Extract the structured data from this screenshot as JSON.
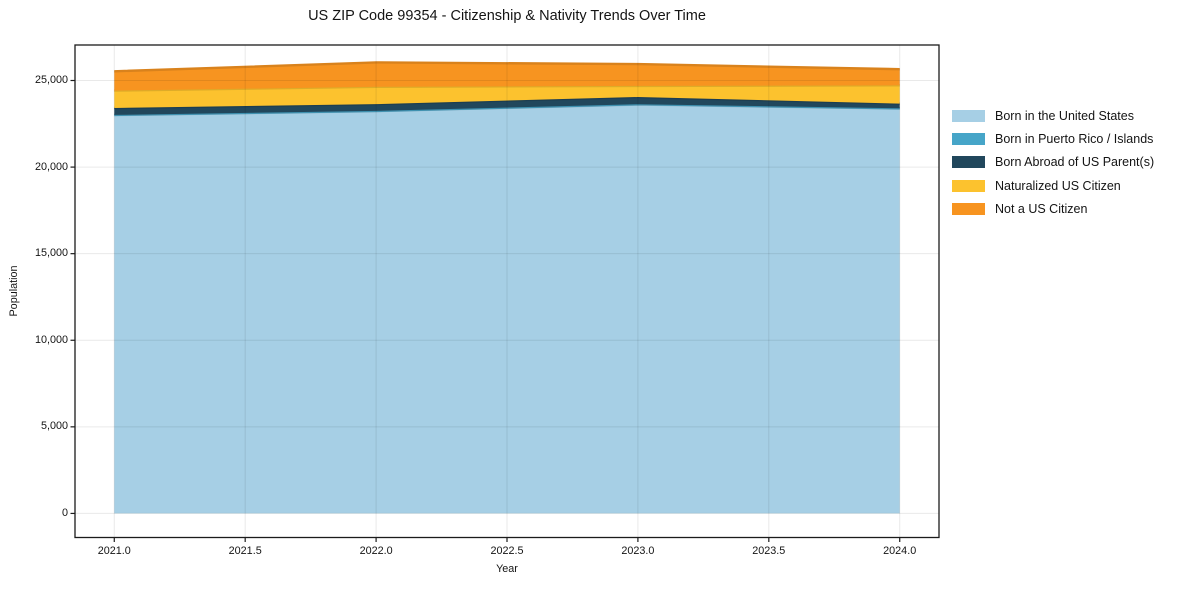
{
  "figure": {
    "title": "US ZIP Code 99354 - Citizenship & Nativity Trends Over Time"
  },
  "chart_data": {
    "type": "area",
    "stacked": true,
    "title": "US ZIP Code 99354 - Citizenship & Nativity Trends Over Time",
    "xlabel": "Year",
    "ylabel": "Population",
    "x": [
      2021,
      2022,
      2023,
      2024
    ],
    "series": [
      {
        "name": "Born in the United States",
        "color": "#a6cfe5",
        "values": [
          23000,
          23225,
          23610,
          23380
        ]
      },
      {
        "name": "Born in Puerto Rico / Islands",
        "color": "#46a5c8",
        "values": [
          15,
          20,
          20,
          15
        ]
      },
      {
        "name": "Born Abroad of US Parent(s)",
        "color": "#21475c",
        "values": [
          395,
          390,
          420,
          270
        ]
      },
      {
        "name": "Naturalized US Citizen",
        "color": "#fcc22e",
        "values": [
          1005,
          1000,
          640,
          1060
        ]
      },
      {
        "name": "Not a US Citizen",
        "color": "#f79420",
        "values": [
          1115,
          1410,
          1255,
          925
        ]
      }
    ],
    "x_ticks": [
      {
        "value": 2021.0,
        "label": "2021.0"
      },
      {
        "value": 2021.5,
        "label": "2021.5"
      },
      {
        "value": 2022.0,
        "label": "2022.0"
      },
      {
        "value": 2022.5,
        "label": "2022.5"
      },
      {
        "value": 2023.0,
        "label": "2023.0"
      },
      {
        "value": 2023.5,
        "label": "2023.5"
      },
      {
        "value": 2024.0,
        "label": "2024.0"
      }
    ],
    "y_ticks": [
      {
        "value": 0,
        "label": "0"
      },
      {
        "value": 5000,
        "label": "5,000"
      },
      {
        "value": 10000,
        "label": "10,000"
      },
      {
        "value": 15000,
        "label": "15,000"
      },
      {
        "value": 20000,
        "label": "20,000"
      },
      {
        "value": 25000,
        "label": "25,000"
      }
    ],
    "xlim": [
      2020.85,
      2024.15
    ],
    "ylim": [
      -1390,
      27050
    ],
    "grid": true,
    "legend_position": "right-outside",
    "colors": {
      "spine": "#1b1b1b",
      "gridline": "rgba(0,0,0,0.085)",
      "background": "#ffffff"
    }
  }
}
